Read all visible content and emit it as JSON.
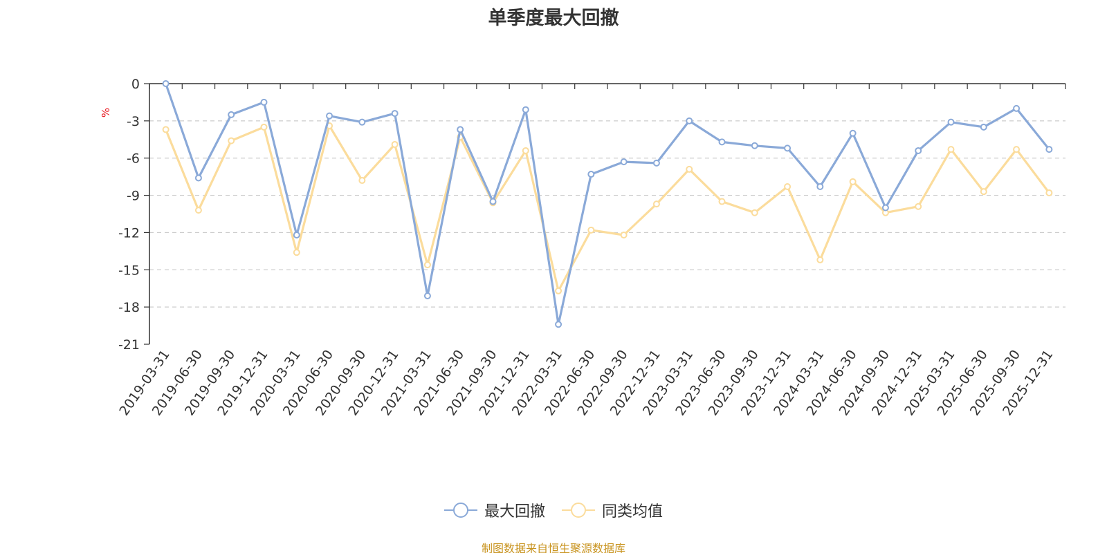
{
  "chart_data": {
    "type": "line",
    "title": "单季度最大回撤",
    "unit": "%",
    "categories": [
      "2019-03-31",
      "2019-06-30",
      "2019-09-30",
      "2019-12-31",
      "2020-03-31",
      "2020-06-30",
      "2020-09-30",
      "2020-12-31",
      "2021-03-31",
      "2021-06-30",
      "2021-09-30",
      "2021-12-31",
      "2022-03-31",
      "2022-06-30",
      "2022-09-30",
      "2022-12-31",
      "2023-03-31",
      "2023-06-30",
      "2023-09-30",
      "2023-12-31",
      "2024-03-31",
      "2024-06-30",
      "2024-09-30",
      "2024-12-31",
      "2025-03-31",
      "2025-06-30",
      "2025-09-30",
      "2025-12-31"
    ],
    "ylim": [
      -21,
      0
    ],
    "yticks": [
      0,
      -3,
      -6,
      -9,
      -12,
      -15,
      -18,
      -21
    ],
    "grid": true,
    "legend_position": "bottom",
    "series": [
      {
        "name": "最大回撤",
        "color": "#8aa9d8",
        "values": [
          0,
          -7.6,
          -2.5,
          -1.5,
          -12.2,
          -2.6,
          -3.1,
          -2.4,
          -17.1,
          -3.7,
          -9.5,
          -2.1,
          -19.4,
          -7.3,
          -6.3,
          -6.4,
          -3.0,
          -4.7,
          -5.0,
          -5.2,
          -8.3,
          -4.0,
          -10.0,
          -5.4,
          -3.1,
          -3.5,
          -2.0,
          -5.3
        ]
      },
      {
        "name": "同类均值",
        "color": "#fbdc9c",
        "values": [
          -3.7,
          -10.2,
          -4.6,
          -3.5,
          -13.6,
          -3.4,
          -7.8,
          -4.9,
          -14.6,
          -4.3,
          -9.6,
          -5.4,
          -16.7,
          -11.8,
          -12.2,
          -9.7,
          -6.9,
          -9.5,
          -10.4,
          -8.3,
          -14.2,
          -7.9,
          -10.4,
          -9.9,
          -5.3,
          -8.7,
          -5.3,
          -8.8
        ]
      }
    ]
  },
  "source_text": "制图数据来自恒生聚源数据库"
}
